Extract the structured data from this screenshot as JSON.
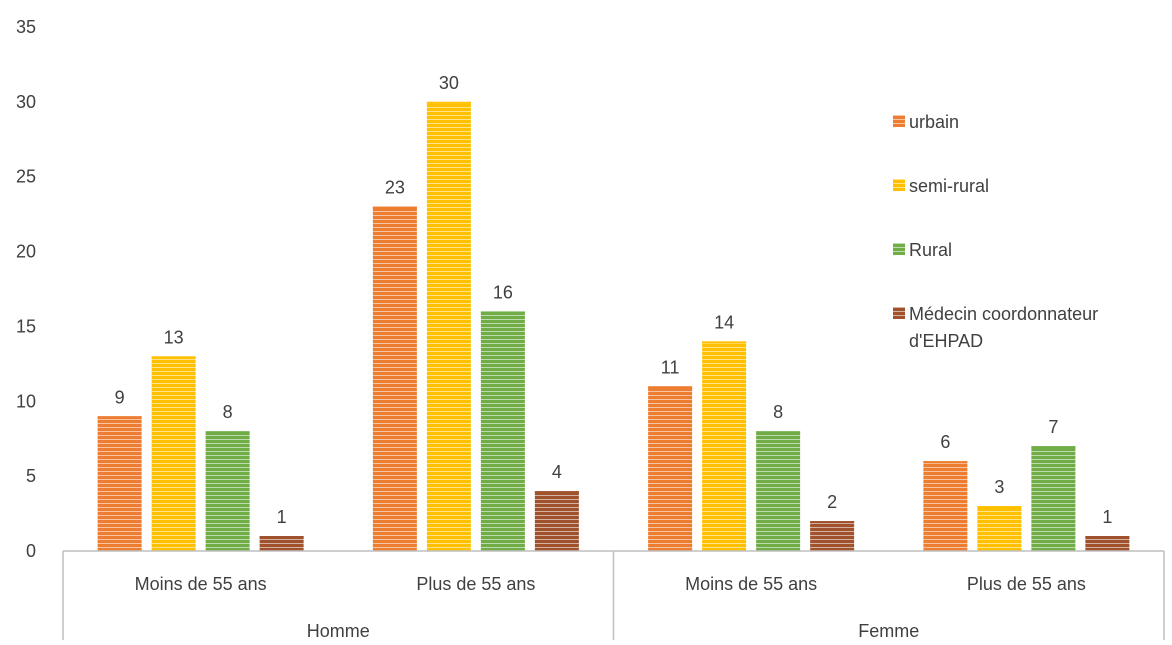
{
  "chart_data": {
    "type": "bar",
    "title": "",
    "xlabel": "",
    "ylabel": "",
    "ylim": [
      0,
      35
    ],
    "yticks": [
      0,
      5,
      10,
      15,
      20,
      25,
      30,
      35
    ],
    "grid": false,
    "legend_position": "right",
    "groups": [
      {
        "label": "Homme",
        "categories": [
          "Moins de 55 ans",
          "Plus de 55 ans"
        ]
      },
      {
        "label": "Femme",
        "categories": [
          "Moins de 55 ans",
          "Plus de 55 ans"
        ]
      }
    ],
    "series": [
      {
        "name": "urbain",
        "color": "#ED7D31",
        "values": [
          9,
          23,
          11,
          6
        ]
      },
      {
        "name": "semi-rural",
        "color": "#FFC000",
        "values": [
          13,
          30,
          14,
          3
        ]
      },
      {
        "name": "Rural",
        "color": "#70AD47",
        "values": [
          8,
          16,
          8,
          7
        ]
      },
      {
        "name": "Médecin coordonnateur d'EHPAD",
        "legend_lines": [
          "Médecin coordonnateur",
          "d'EHPAD"
        ],
        "color": "#A0522D",
        "values": [
          1,
          4,
          2,
          1
        ]
      }
    ]
  }
}
